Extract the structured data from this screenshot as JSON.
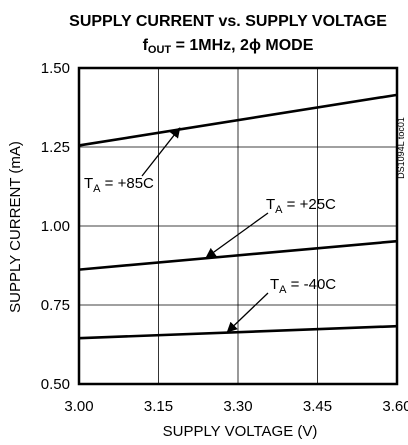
{
  "chart_data": {
    "type": "line",
    "title": "SUPPLY CURRENT vs. SUPPLY VOLTAGE",
    "subtitle": {
      "prefix": "f",
      "prefix_sub": "OUT",
      "rest": " = 1MHz, 2",
      "phi": "ϕ",
      "suffix": " MODE"
    },
    "side_label": "DS1094L toc01",
    "xlabel": "SUPPLY VOLTAGE (V)",
    "ylabel": "SUPPLY CURRENT (mA)",
    "xlim": [
      3.0,
      3.6
    ],
    "ylim": [
      0.5,
      1.5
    ],
    "xticks": [
      "3.00",
      "3.15",
      "3.30",
      "3.45",
      "3.60"
    ],
    "yticks": [
      "0.50",
      "0.75",
      "1.00",
      "1.25",
      "1.50"
    ],
    "grid": true,
    "series": [
      {
        "x": [
          3.0,
          3.6
        ],
        "y": [
          1.255,
          1.415
        ],
        "label": {
          "pre": "T",
          "sub": "A",
          "post": " = +85C"
        },
        "arrow_to": [
          3.19,
          1.31
        ]
      },
      {
        "x": [
          3.0,
          3.6
        ],
        "y": [
          0.862,
          0.952
        ],
        "label": {
          "pre": "T",
          "sub": "A",
          "post": " = +25C"
        },
        "arrow_to": [
          3.24,
          0.9
        ]
      },
      {
        "x": [
          3.0,
          3.6
        ],
        "y": [
          0.645,
          0.683
        ],
        "label": {
          "pre": "T",
          "sub": "A",
          "post": " = -40C"
        },
        "arrow_to": [
          3.28,
          0.665
        ]
      }
    ]
  }
}
